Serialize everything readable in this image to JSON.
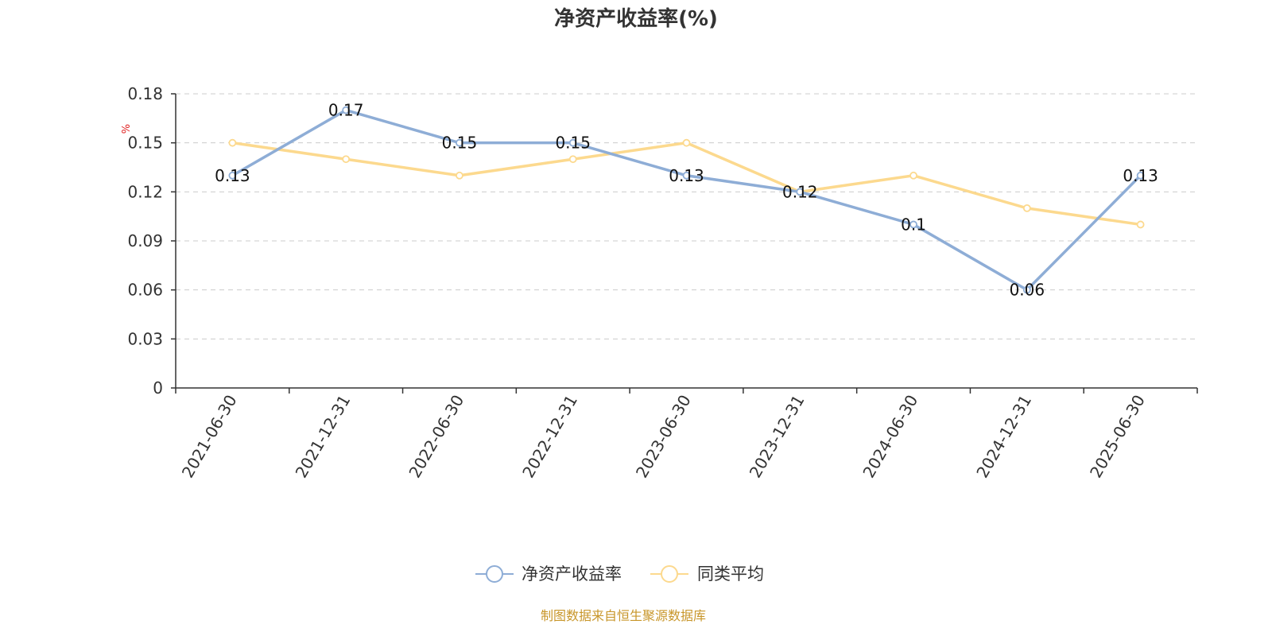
{
  "chart_data": {
    "type": "line",
    "title": "净资产收益率(%)",
    "ylabel": "%",
    "ylim": [
      0,
      0.18
    ],
    "yticks": [
      "0",
      "0.03",
      "0.06",
      "0.09",
      "0.12",
      "0.15",
      "0.18"
    ],
    "categories": [
      "2021-06-30",
      "2021-12-31",
      "2022-06-30",
      "2022-12-31",
      "2023-06-30",
      "2023-12-31",
      "2024-06-30",
      "2024-12-31",
      "2025-06-30"
    ],
    "series": [
      {
        "name": "净资产收益率",
        "color": "#8eadd6",
        "values": [
          0.13,
          0.17,
          0.15,
          0.15,
          0.13,
          0.12,
          0.1,
          0.06,
          0.13
        ],
        "data_labels": [
          "0.13",
          "0.17",
          "0.15",
          "0.15",
          "0.13",
          "0.12",
          "0.1",
          "0.06",
          "0.13"
        ]
      },
      {
        "name": "同类平均",
        "color": "#fcd98e",
        "values": [
          0.15,
          0.14,
          0.13,
          0.14,
          0.15,
          0.12,
          0.13,
          0.11,
          0.1
        ]
      }
    ],
    "grid": true,
    "legend": "bottom-center",
    "source": "制图数据来自恒生聚源数据库"
  }
}
